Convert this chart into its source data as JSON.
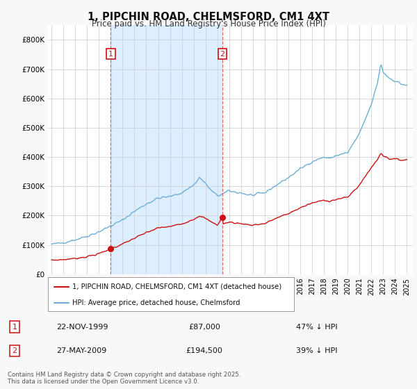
{
  "title": "1, PIPCHIN ROAD, CHELMSFORD, CM1 4XT",
  "subtitle": "Price paid vs. HM Land Registry's House Price Index (HPI)",
  "plot_bg_color": "#ffffff",
  "shade_color": "#ddeeff",
  "legend_label_red": "1, PIPCHIN ROAD, CHELMSFORD, CM1 4XT (detached house)",
  "legend_label_blue": "HPI: Average price, detached house, Chelmsford",
  "annotation1_date": "22-NOV-1999",
  "annotation1_price": "£87,000",
  "annotation1_hpi": "47% ↓ HPI",
  "annotation2_date": "27-MAY-2009",
  "annotation2_price": "£194,500",
  "annotation2_hpi": "39% ↓ HPI",
  "footnote": "Contains HM Land Registry data © Crown copyright and database right 2025.\nThis data is licensed under the Open Government Licence v3.0.",
  "ylim": [
    0,
    850000
  ],
  "yticks": [
    0,
    100000,
    200000,
    300000,
    400000,
    500000,
    600000,
    700000,
    800000
  ],
  "ytick_labels": [
    "£0",
    "£100K",
    "£200K",
    "£300K",
    "£400K",
    "£500K",
    "£600K",
    "£700K",
    "£800K"
  ],
  "sale1_x": 2000.0,
  "sale1_y": 87000,
  "sale2_x": 2009.42,
  "sale2_y": 194500,
  "vline1_x": 2000.0,
  "vline2_x": 2009.42,
  "xlim_min": 1994.7,
  "xlim_max": 2025.5
}
